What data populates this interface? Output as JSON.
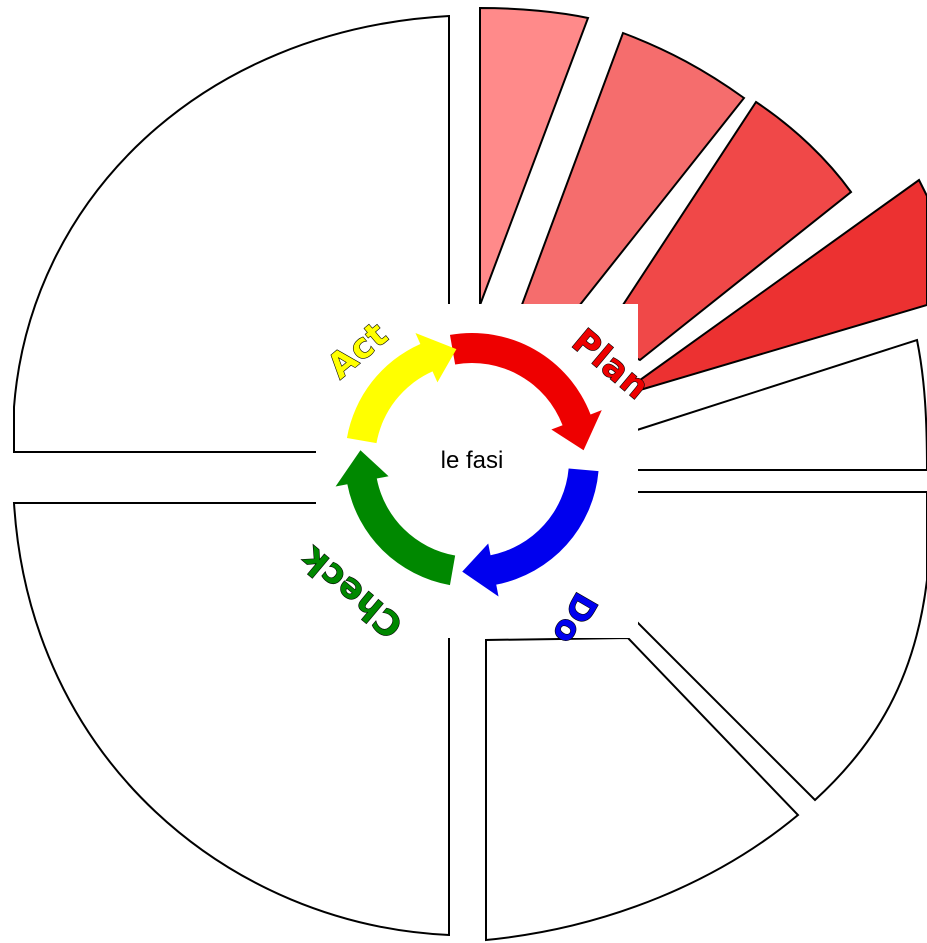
{
  "diagram": {
    "center_label": "le fasi",
    "phases": [
      {
        "label": "Plan",
        "color": "#ee0000"
      },
      {
        "label": "Do",
        "color": "#0000ee"
      },
      {
        "label": "Check",
        "color": "#008800"
      },
      {
        "label": "Act",
        "color": "#ffff00"
      }
    ],
    "sectors": [
      {
        "id": "plan-1",
        "fill": "#ff8a8a"
      },
      {
        "id": "plan-2",
        "fill": "#f56d6d"
      },
      {
        "id": "plan-3",
        "fill": "#f04848"
      },
      {
        "id": "plan-4",
        "fill": "#ec3131"
      },
      {
        "id": "do-1",
        "fill": "#ffffff"
      },
      {
        "id": "do-2",
        "fill": "#ffffff"
      },
      {
        "id": "do-3",
        "fill": "#ffffff"
      },
      {
        "id": "do-4",
        "fill": "#ffffff"
      },
      {
        "id": "check",
        "fill": "#ffffff"
      },
      {
        "id": "act",
        "fill": "#ffffff"
      }
    ]
  }
}
